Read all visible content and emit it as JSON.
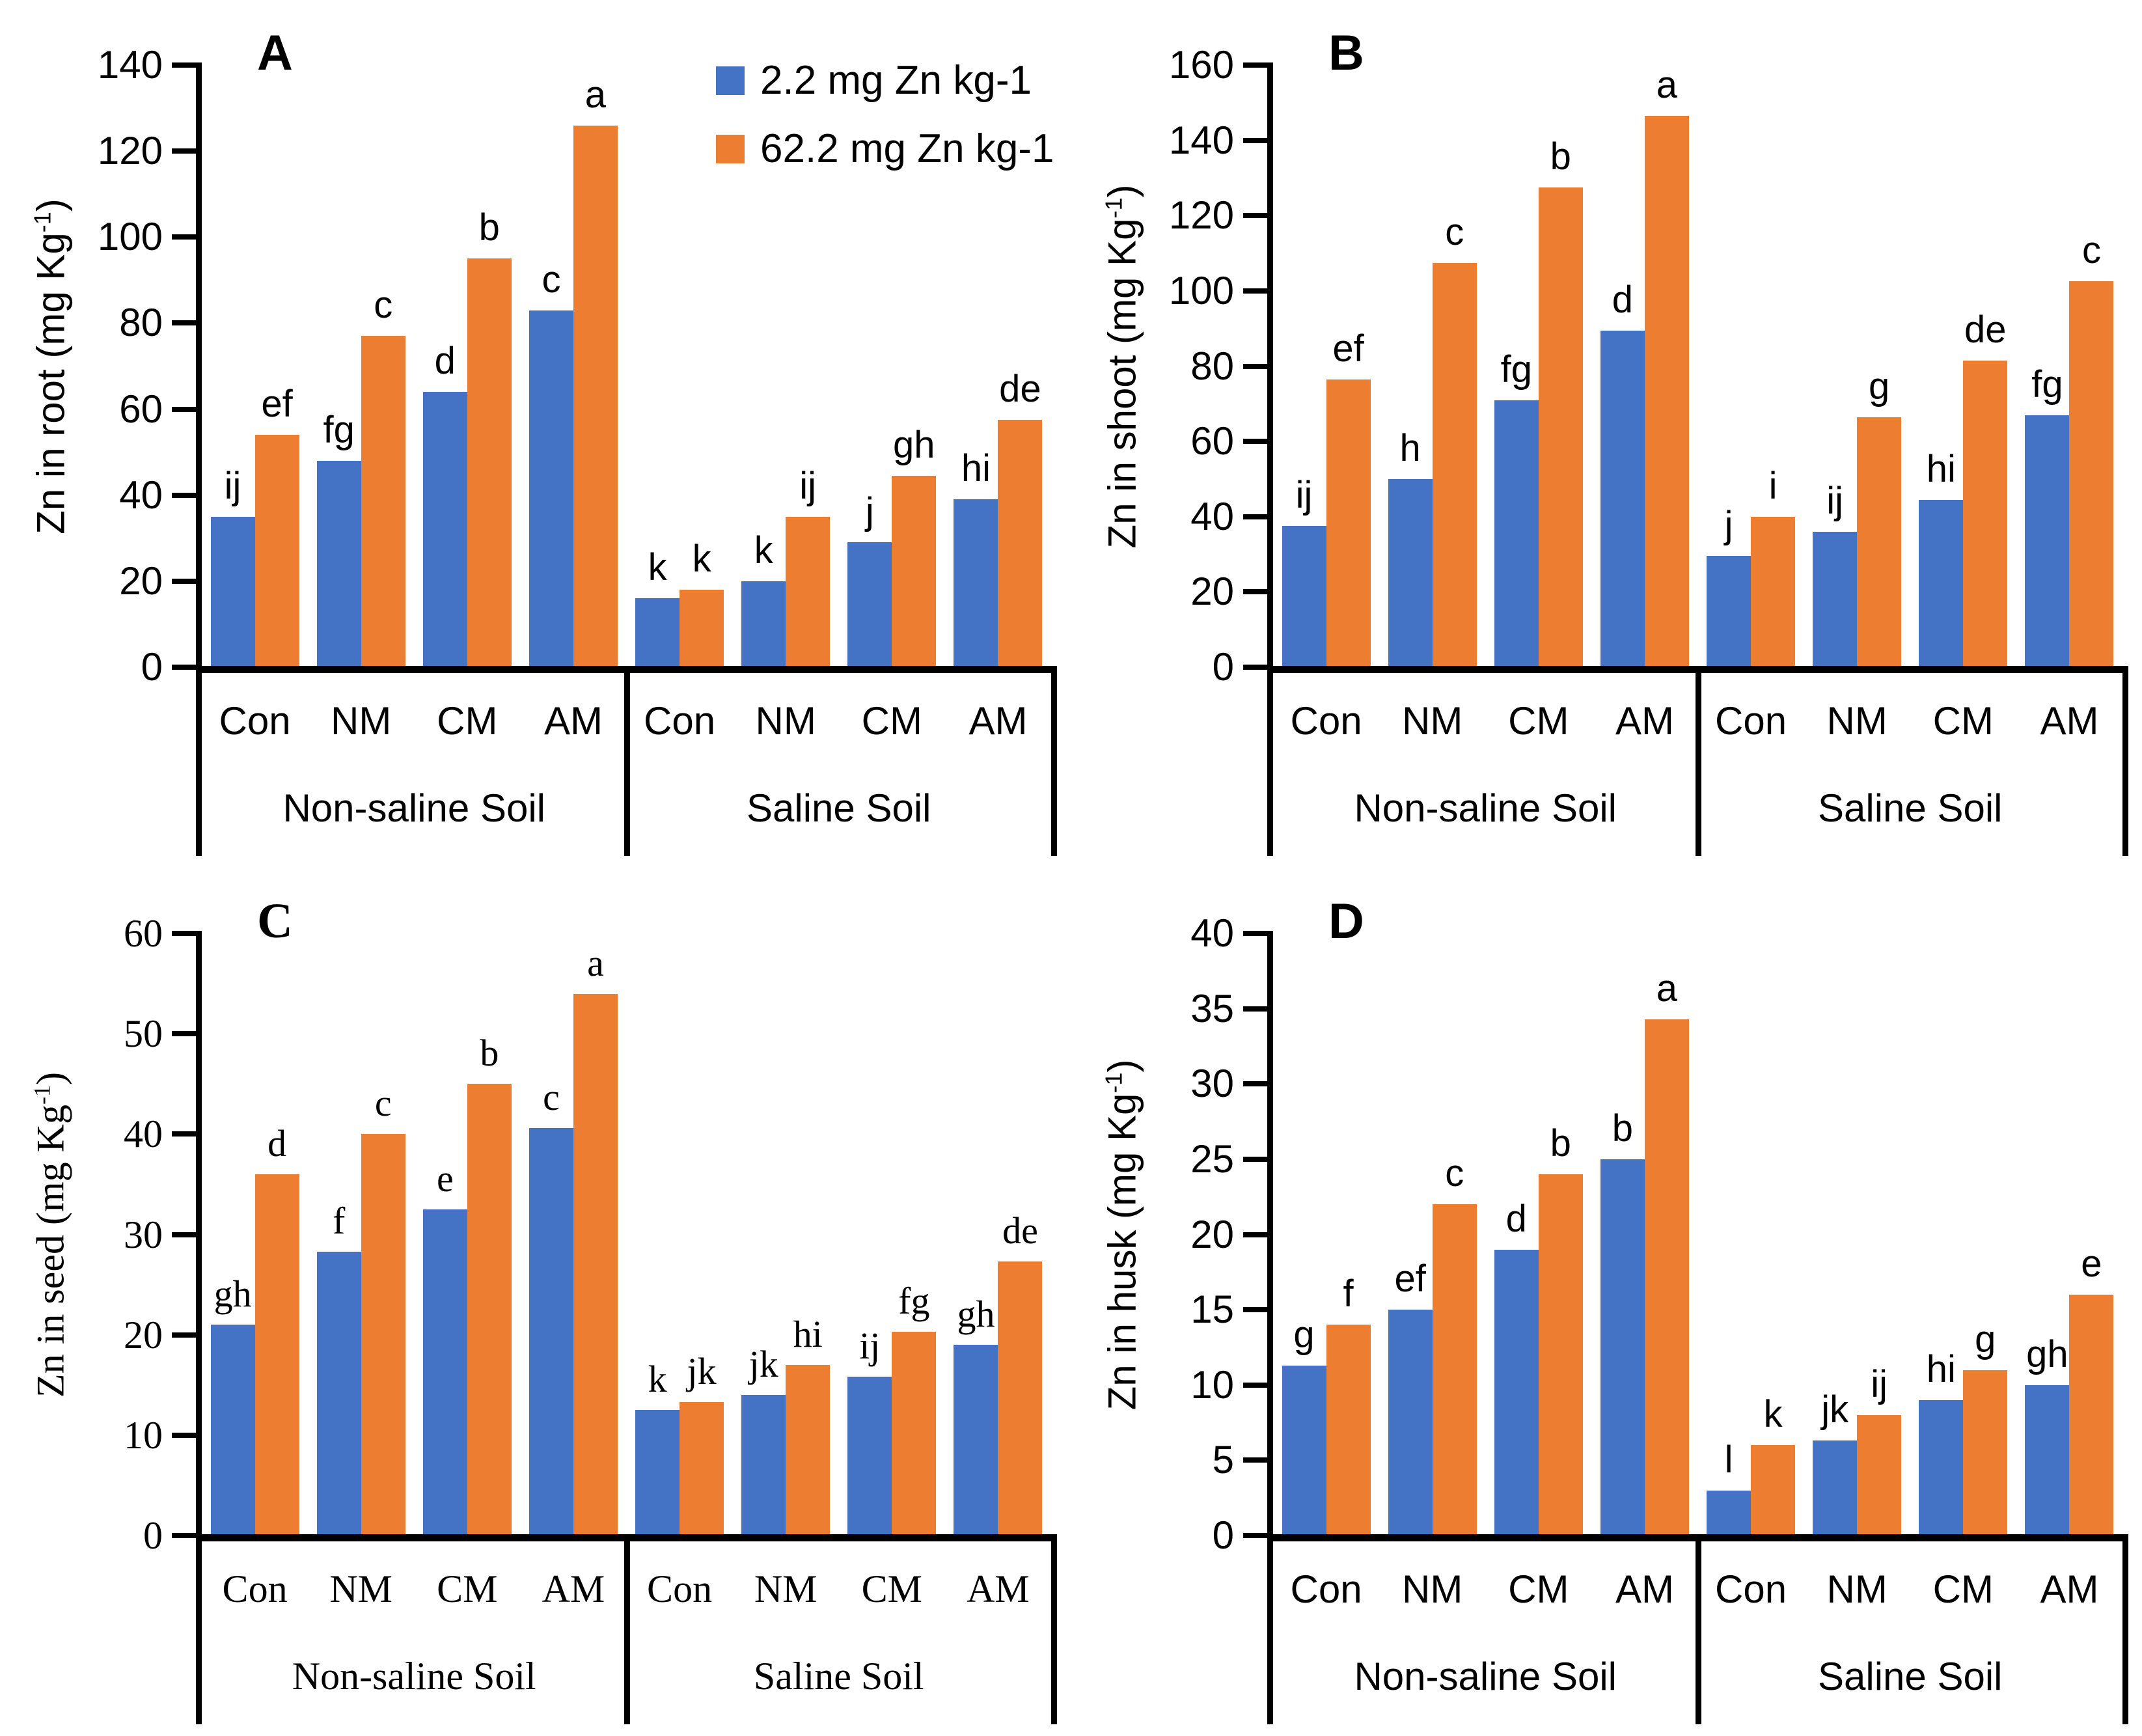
{
  "figure_title": "",
  "legend": {
    "items": [
      {
        "label": "2.2 mg Zn kg-1",
        "color": "#4472C4",
        "series": "low-zn"
      },
      {
        "label": "62.2 mg Zn kg-1",
        "color": "#ED7D31",
        "series": "high-zn"
      }
    ]
  },
  "axis_colors": {
    "line": "#000000",
    "text": "#000000"
  },
  "chart_data": [
    {
      "panel_label": "A",
      "type": "bar",
      "font": "sans",
      "legend_here": true,
      "ylabel_main": "Zn in root (mg Kg",
      "ylabel_sup": "-1",
      "ylabel_tail": ")",
      "ylim": [
        0,
        140
      ],
      "ystep": 20,
      "grid": false,
      "legend_position": "top-right-of-panel-A",
      "sections": [
        {
          "label": "Non-saline Soil",
          "categories": [
            "Con",
            "NM",
            "CM",
            "AM"
          ],
          "series": [
            {
              "name": "2.2 mg Zn kg-1",
              "values": [
                35,
                48,
                64,
                83
              ],
              "letters": [
                "ij",
                "fg",
                "d",
                "c"
              ]
            },
            {
              "name": "62.2 mg Zn kg-1",
              "values": [
                54,
                77,
                95,
                126
              ],
              "letters": [
                "ef",
                "c",
                "b",
                "a"
              ]
            }
          ]
        },
        {
          "label": "Saline Soil",
          "categories": [
            "Con",
            "NM",
            "CM",
            "AM"
          ],
          "series": [
            {
              "name": "2.2 mg Zn kg-1",
              "values": [
                16,
                20,
                29,
                39
              ],
              "letters": [
                "k",
                "k",
                "j",
                "hi"
              ]
            },
            {
              "name": "62.2 mg Zn kg-1",
              "values": [
                18,
                35,
                44.5,
                57.5
              ],
              "letters": [
                "k",
                "ij",
                "gh",
                "de"
              ]
            }
          ]
        }
      ]
    },
    {
      "panel_label": "B",
      "type": "bar",
      "font": "sans",
      "legend_here": false,
      "ylabel_main": "Zn in shoot (mg Kg",
      "ylabel_sup": "-1",
      "ylabel_tail": ")",
      "ylim": [
        0,
        160
      ],
      "ystep": 20,
      "grid": false,
      "sections": [
        {
          "label": "Non-saline Soil",
          "categories": [
            "Con",
            "NM",
            "CM",
            "AM"
          ],
          "series": [
            {
              "name": "2.2 mg Zn kg-1",
              "values": [
                37.5,
                50,
                71,
                89.5
              ],
              "letters": [
                "ij",
                "h",
                "fg",
                "d"
              ]
            },
            {
              "name": "62.2 mg Zn kg-1",
              "values": [
                76.5,
                107.5,
                127.5,
                146.5
              ],
              "letters": [
                "ef",
                "c",
                "b",
                "a"
              ]
            }
          ]
        },
        {
          "label": "Saline Soil",
          "categories": [
            "Con",
            "NM",
            "CM",
            "AM"
          ],
          "series": [
            {
              "name": "2.2 mg Zn kg-1",
              "values": [
                29.5,
                36,
                44.5,
                67
              ],
              "letters": [
                "j",
                "ij",
                "hi",
                "fg"
              ]
            },
            {
              "name": "62.2 mg Zn kg-1",
              "values": [
                40,
                66.5,
                81.5,
                102.5
              ],
              "letters": [
                "i",
                "g",
                "de",
                "c"
              ]
            }
          ]
        }
      ]
    },
    {
      "panel_label": "C",
      "type": "bar",
      "font": "serif",
      "legend_here": false,
      "ylabel_main": "Zn in seed (mg Kg",
      "ylabel_sup": "-1",
      "ylabel_tail": ")",
      "ylim": [
        0,
        60
      ],
      "ystep": 10,
      "grid": false,
      "sections": [
        {
          "label": "Non-saline Soil",
          "categories": [
            "Con",
            "NM",
            "CM",
            "AM"
          ],
          "series": [
            {
              "name": "2.2 mg Zn kg-1",
              "values": [
                21,
                28.3,
                32.5,
                40.6
              ],
              "letters": [
                "gh",
                "f",
                "e",
                "c"
              ]
            },
            {
              "name": "62.2 mg Zn kg-1",
              "values": [
                36,
                40,
                45,
                54
              ],
              "letters": [
                "d",
                "c",
                "b",
                "a"
              ]
            }
          ]
        },
        {
          "label": "Saline Soil",
          "categories": [
            "Con",
            "NM",
            "CM",
            "AM"
          ],
          "series": [
            {
              "name": "2.2 mg Zn kg-1",
              "values": [
                12.5,
                14,
                15.8,
                19
              ],
              "letters": [
                "k",
                "jk",
                "ij",
                "gh"
              ]
            },
            {
              "name": "62.2 mg Zn kg-1",
              "values": [
                13.3,
                17,
                20.3,
                27.3
              ],
              "letters": [
                "jk",
                "hi",
                "fg",
                "de"
              ]
            }
          ]
        }
      ]
    },
    {
      "panel_label": "D",
      "type": "bar",
      "font": "sans",
      "legend_here": false,
      "ylabel_main": "Zn in husk (mg Kg",
      "ylabel_sup": "-1",
      "ylabel_tail": ")",
      "ylim": [
        0,
        40
      ],
      "ystep": 5,
      "grid": false,
      "sections": [
        {
          "label": "Non-saline Soil",
          "categories": [
            "Con",
            "NM",
            "CM",
            "AM"
          ],
          "series": [
            {
              "name": "2.2 mg Zn kg-1",
              "values": [
                11.3,
                15,
                19,
                25
              ],
              "letters": [
                "g",
                "ef",
                "d",
                "b"
              ]
            },
            {
              "name": "62.2 mg Zn kg-1",
              "values": [
                14,
                22,
                24,
                34.3
              ],
              "letters": [
                "f",
                "c",
                "b",
                "a"
              ]
            }
          ]
        },
        {
          "label": "Saline Soil",
          "categories": [
            "Con",
            "NM",
            "CM",
            "AM"
          ],
          "series": [
            {
              "name": "2.2 mg Zn kg-1",
              "values": [
                3,
                6.3,
                9,
                10
              ],
              "letters": [
                "l",
                "jk",
                "hi",
                "gh"
              ]
            },
            {
              "name": "62.2 mg Zn kg-1",
              "values": [
                6,
                8,
                11,
                16
              ],
              "letters": [
                "k",
                "ij",
                "g",
                "e"
              ]
            }
          ]
        }
      ]
    }
  ]
}
